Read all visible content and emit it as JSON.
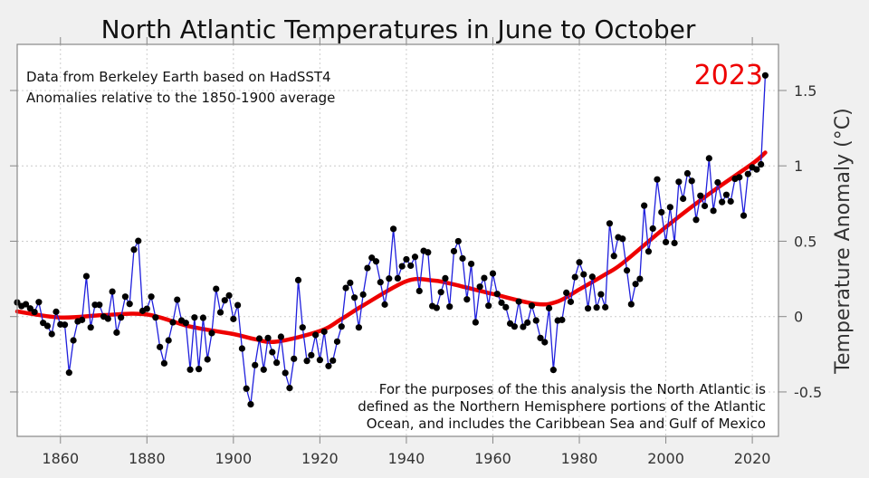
{
  "chart_data": {
    "type": "line",
    "title": "North Atlantic Temperatures in June to October",
    "xlabel": "",
    "ylabel": "Temperature Anomaly (°C)",
    "xlim": [
      1850,
      2026
    ],
    "ylim": [
      -0.8,
      1.8
    ],
    "grid": true,
    "x_ticks": [
      1860,
      1880,
      1900,
      1920,
      1940,
      1960,
      1980,
      2000,
      2020
    ],
    "x_tick_labels": [
      "1860",
      "1880",
      "1900",
      "1920",
      "1940",
      "1960",
      "1980",
      "2000",
      "2020"
    ],
    "y_ticks": [
      -0.5,
      0,
      0.5,
      1,
      1.5
    ],
    "y_tick_labels": [
      "-0.5",
      "0",
      "0.5",
      "1",
      "1.5"
    ],
    "annotations": {
      "source_lines": [
        "Data from Berkeley Earth based on HadSST4",
        "Anomalies relative to the 1850-1900 average"
      ],
      "highlight_year": "2023",
      "definition_lines": [
        "For the purposes of the this analysis the North Atlantic is",
        "defined as the Northern Hemisphere portions of the Atlantic",
        "Ocean, and includes the Caribbean Sea and Gulf of Mexico"
      ]
    },
    "colors": {
      "annual": "#1f1fdd",
      "markers": "#000000",
      "smooth": "#ee0000",
      "highlight": "#ee0000"
    },
    "series": [
      {
        "kind": "annual",
        "x_start": 1850,
        "values": [
          0.094,
          0.07,
          0.082,
          0.054,
          0.03,
          0.096,
          -0.042,
          -0.062,
          -0.116,
          0.032,
          -0.052,
          -0.054,
          -0.372,
          -0.158,
          -0.032,
          -0.022,
          0.268,
          -0.072,
          0.078,
          0.078,
          0.0,
          -0.014,
          0.166,
          -0.106,
          -0.006,
          0.132,
          0.084,
          0.444,
          0.502,
          0.038,
          0.052,
          0.132,
          -0.006,
          -0.202,
          -0.31,
          -0.158,
          -0.038,
          0.112,
          -0.026,
          -0.042,
          -0.352,
          -0.006,
          -0.348,
          -0.008,
          -0.284,
          -0.11,
          0.184,
          0.028,
          0.108,
          0.14,
          -0.016,
          0.076,
          -0.212,
          -0.478,
          -0.582,
          -0.322,
          -0.146,
          -0.352,
          -0.142,
          -0.236,
          -0.306,
          -0.134,
          -0.374,
          -0.474,
          -0.28,
          0.242,
          -0.072,
          -0.294,
          -0.256,
          -0.122,
          -0.288,
          -0.1,
          -0.328,
          -0.292,
          -0.166,
          -0.066,
          0.19,
          0.224,
          0.126,
          -0.072,
          0.146,
          0.322,
          0.39,
          0.366,
          0.228,
          0.08,
          0.252,
          0.582,
          0.254,
          0.334,
          0.38,
          0.338,
          0.396,
          0.17,
          0.436,
          0.426,
          0.07,
          0.058,
          0.162,
          0.254,
          0.066,
          0.434,
          0.5,
          0.386,
          0.114,
          0.35,
          -0.038,
          0.198,
          0.256,
          0.072,
          0.286,
          0.15,
          0.092,
          0.062,
          -0.046,
          -0.066,
          0.1,
          -0.068,
          -0.04,
          0.072,
          -0.026,
          -0.142,
          -0.17,
          0.056,
          -0.354,
          -0.026,
          -0.022,
          0.158,
          0.098,
          0.262,
          0.36,
          0.28,
          0.054,
          0.264,
          0.06,
          0.148,
          0.062,
          0.618,
          0.402,
          0.526,
          0.516,
          0.306,
          0.082,
          0.216,
          0.25,
          0.736,
          0.432,
          0.584,
          0.91,
          0.692,
          0.494,
          0.726,
          0.488,
          0.894,
          0.782,
          0.95,
          0.9,
          0.642,
          0.802,
          0.734,
          1.05,
          0.702,
          0.89,
          0.76,
          0.808,
          0.764,
          0.914,
          0.924,
          0.67,
          0.946,
          0.99,
          0.976,
          1.01,
          1.6
        ]
      },
      {
        "kind": "smoothed",
        "x": [
          1850,
          1860,
          1870,
          1880,
          1890,
          1900,
          1905,
          1910,
          1920,
          1925,
          1930,
          1940,
          1946,
          1950,
          1960,
          1970,
          1975,
          1980,
          1986,
          1990,
          2000,
          2010,
          2020,
          2023
        ],
        "values": [
          0.034,
          -0.006,
          0.01,
          0.014,
          -0.066,
          -0.116,
          -0.15,
          -0.166,
          -0.096,
          -0.016,
          0.074,
          0.235,
          0.24,
          0.22,
          0.15,
          0.084,
          0.1,
          0.18,
          0.28,
          0.354,
          0.594,
          0.814,
          1.014,
          1.088
        ]
      }
    ]
  }
}
